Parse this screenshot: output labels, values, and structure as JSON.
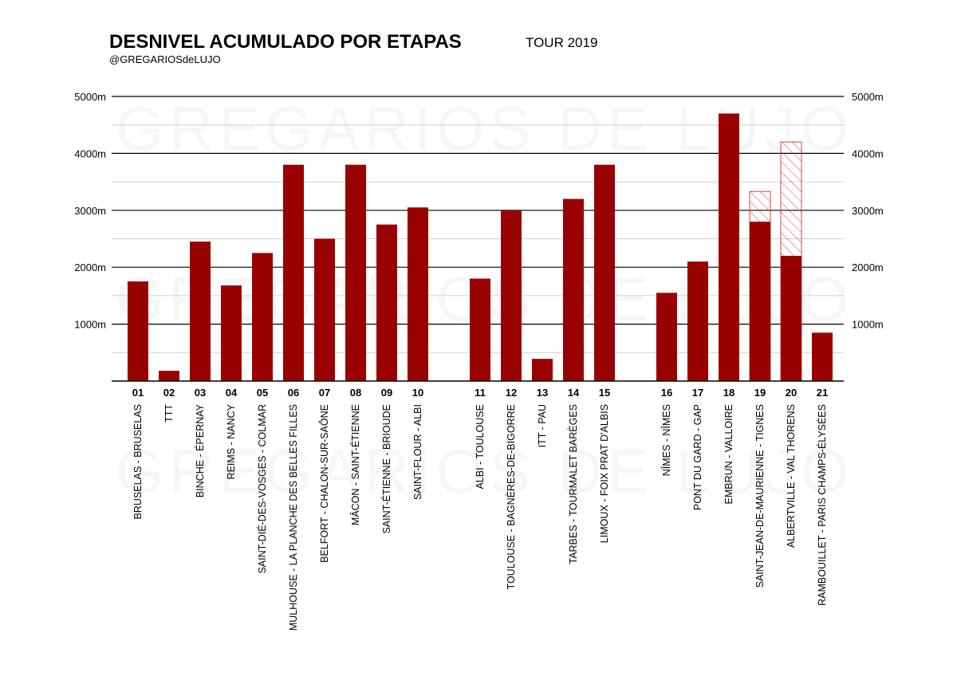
{
  "chart_data": {
    "type": "bar",
    "title": "DESNIVEL ACUMULADO POR ETAPAS",
    "subtitle": "TOUR 2019",
    "credit": "@GREGARIOSdeLUJO",
    "watermark": "GREGARIOS DE LUJO",
    "xlabel": "",
    "ylabel": "",
    "ylim": [
      0,
      5000
    ],
    "y_ticks": [
      1000,
      2000,
      3000,
      4000,
      5000
    ],
    "y_tick_labels": [
      "1000m",
      "2000m",
      "3000m",
      "4000m",
      "5000m"
    ],
    "bar_color": "#990000",
    "original_outline_color": "#d94040",
    "categories": [
      "01",
      "02",
      "03",
      "04",
      "05",
      "06",
      "07",
      "08",
      "09",
      "10",
      "11",
      "12",
      "13",
      "14",
      "15",
      "16",
      "17",
      "18",
      "19",
      "20",
      "21"
    ],
    "stage_names": [
      "BRUSELAS - BRUSELAS",
      "TTT",
      "BINCHE - ÉPERNAY",
      "REIMS - NANCY",
      "SAINT-DIÉ-DES-VOSGES - COLMAR",
      "MULHOUSE - LA PLANCHE DES BELLES FILLES",
      "BELFORT - CHALON-SUR-SAÔNE",
      "MÂCON - SAINT-ÉTIENNE",
      "SAINT-ÉTIENNE - BRIOUDE",
      "SAINT-FLOUR - ALBI",
      "ALBI - TOULOUSE",
      "TOULOUSE - BAGNÈRES-DE-BIGORRE",
      "ITT - PAU",
      "TARBES - TOURMALET BARÈGES",
      "LIMOUX - FOIX PRAT D'ALBIS",
      "NÎMES - NÎMES",
      "PONT DU GARD - GAP",
      "EMBRUN - VALLOIRE",
      "SAINT-JEAN-DE-MAURIENNE - TIGNES",
      "ALBERTVILLE - VAL THORENS",
      "RAMBOUILLET - PARIS CHAMPS-ÉLYSÉES"
    ],
    "groups": [
      10,
      5,
      6
    ],
    "values": [
      1750,
      180,
      2450,
      1680,
      2250,
      3800,
      2500,
      3800,
      2750,
      3050,
      1800,
      3000,
      390,
      3200,
      3800,
      1550,
      2100,
      4700,
      2800,
      2200,
      850
    ],
    "original_values": [
      null,
      null,
      null,
      null,
      null,
      null,
      null,
      null,
      null,
      null,
      null,
      null,
      null,
      null,
      null,
      null,
      null,
      null,
      3330,
      4200,
      null
    ]
  }
}
